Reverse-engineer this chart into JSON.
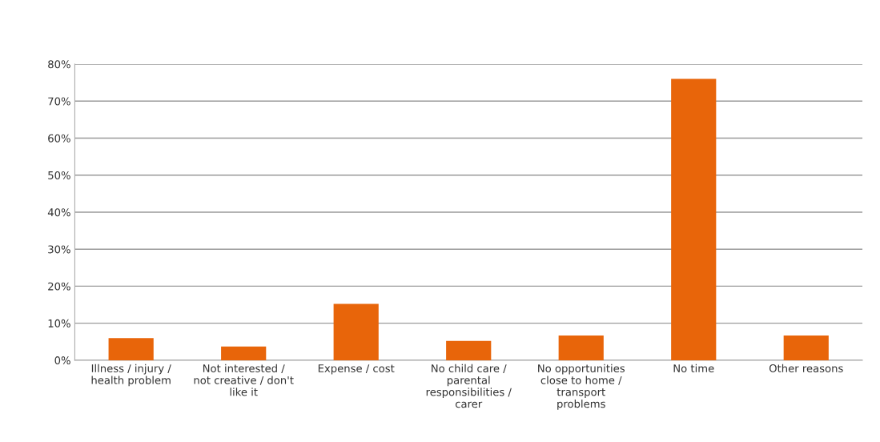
{
  "chart_data": {
    "type": "bar",
    "categories": [
      "Illness / injury /\nhealth problem",
      "Not interested /\nnot creative / don't\nlike it",
      "Expense / cost",
      "No child care /\nparental\nresponsibilities /\ncarer",
      "No opportunities\nclose to home /\ntransport\nproblems",
      "No time",
      "Other reasons"
    ],
    "values": [
      6,
      3.7,
      15.2,
      5.2,
      6.7,
      76,
      6.7
    ],
    "color": "#e8650a",
    "ylim": [
      0,
      80
    ],
    "yticks": [
      {
        "value": 0,
        "label": "0%"
      },
      {
        "value": 10,
        "label": "10%"
      },
      {
        "value": 20,
        "label": "20%"
      },
      {
        "value": 30,
        "label": "30%"
      },
      {
        "value": 40,
        "label": "40%"
      },
      {
        "value": 50,
        "label": "50%"
      },
      {
        "value": 60,
        "label": "60%"
      },
      {
        "value": 70,
        "label": "70%"
      },
      {
        "value": 80,
        "label": "80%"
      }
    ],
    "grid": "y"
  }
}
